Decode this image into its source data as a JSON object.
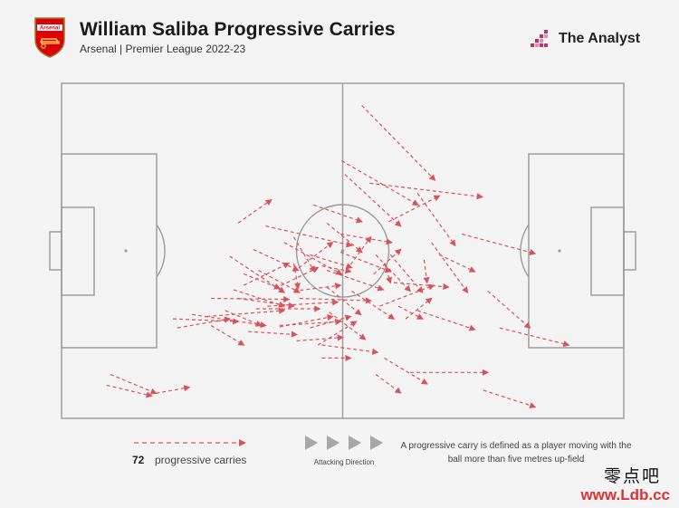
{
  "header": {
    "title": "William Saliba Progressive Carries",
    "subtitle": "Arsenal | Premier League 2022-23",
    "crest_label": "Arsenal",
    "brand_name": "The Analyst"
  },
  "legend": {
    "count": "72",
    "label": "progressive carries",
    "direction_label": "Attacking Direction",
    "definition": "A progressive carry is defined as a player moving with the ball more than five metres up-field"
  },
  "watermark": {
    "chinese": "零点吧",
    "url": "www.Ldb.cc"
  },
  "colors": {
    "arrow": "#d9535a",
    "pitch_line": "#9a9a9a",
    "pitch_bg": "#f4f4f4",
    "accent": "#c0306b",
    "watermark_red": "#e0312f"
  },
  "chart_data": {
    "type": "scatter",
    "variant": "arrows on football pitch",
    "units": "pitch coordinates 0-100 (x = length in attacking direction, y = width from top)",
    "xlim": [
      0,
      100
    ],
    "ylim": [
      0,
      100
    ],
    "carries": [
      [
        53.4,
        6.6,
        66.4,
        28.9
      ],
      [
        49.8,
        23.1,
        63.4,
        36.3
      ],
      [
        50.4,
        27.2,
        60.3,
        42.6
      ],
      [
        54.8,
        29.8,
        74.8,
        33.9
      ],
      [
        44.8,
        36.3,
        53.4,
        41.3
      ],
      [
        58.2,
        41.3,
        67.2,
        33.6
      ],
      [
        47.2,
        41.7,
        53.4,
        50.4
      ],
      [
        36.3,
        42.6,
        51.6,
        48.4
      ],
      [
        41.3,
        45.9,
        45.0,
        56.2
      ],
      [
        44.2,
        51.2,
        51.6,
        55.0
      ],
      [
        49.6,
        50.4,
        58.5,
        56.2
      ],
      [
        55.9,
        51.2,
        62.0,
        62.0
      ],
      [
        58.5,
        51.2,
        64.2,
        62.4
      ],
      [
        64.5,
        52.7,
        65.0,
        59.5
      ],
      [
        41.3,
        53.7,
        42.1,
        61.2
      ],
      [
        46.3,
        54.5,
        51.4,
        56.2
      ],
      [
        51.4,
        54.1,
        55.0,
        45.9
      ],
      [
        57.4,
        53.7,
        58.5,
        59.5
      ],
      [
        55.5,
        57.0,
        60.3,
        49.6
      ],
      [
        39.6,
        47.5,
        49.8,
        57.0
      ],
      [
        34.1,
        49.6,
        42.1,
        55.8
      ],
      [
        47.2,
        55.8,
        57.2,
        61.6
      ],
      [
        29.9,
        51.6,
        39.6,
        62.4
      ],
      [
        32.4,
        60.3,
        40.4,
        53.7
      ],
      [
        35.0,
        55.8,
        42.3,
        62.4
      ],
      [
        38.0,
        61.2,
        45.6,
        55.0
      ],
      [
        41.3,
        62.0,
        49.6,
        60.3
      ],
      [
        47.2,
        60.8,
        53.2,
        69.0
      ],
      [
        42.3,
        64.2,
        55.0,
        64.9
      ],
      [
        36.6,
        66.5,
        49.1,
        65.3
      ],
      [
        30.6,
        61.6,
        39.6,
        66.5
      ],
      [
        26.6,
        64.2,
        40.4,
        64.5
      ],
      [
        31.4,
        64.2,
        41.3,
        66.5
      ],
      [
        34.6,
        67.3,
        45.9,
        67.3
      ],
      [
        25.8,
        69.6,
        39.6,
        67.8
      ],
      [
        23.2,
        69.0,
        36.3,
        72.3
      ],
      [
        19.8,
        70.3,
        31.4,
        71.1
      ],
      [
        20.6,
        73.0,
        29.9,
        70.3
      ],
      [
        26.6,
        72.3,
        32.4,
        78.1
      ],
      [
        33.2,
        74.1,
        41.8,
        75.0
      ],
      [
        38.8,
        72.3,
        49.6,
        71.1
      ],
      [
        44.2,
        73.0,
        51.4,
        69.6
      ],
      [
        41.8,
        76.9,
        50.0,
        75.8
      ],
      [
        45.6,
        78.1,
        52.4,
        71.1
      ],
      [
        46.3,
        82.0,
        51.4,
        82.0
      ],
      [
        57.4,
        82.0,
        65.0,
        89.7
      ],
      [
        55.9,
        86.9,
        60.3,
        92.4
      ],
      [
        63.3,
        67.8,
        73.5,
        73.5
      ],
      [
        75.8,
        62.0,
        83.3,
        73.0
      ],
      [
        77.9,
        73.0,
        90.2,
        78.1
      ],
      [
        75.0,
        91.6,
        84.2,
        96.6
      ],
      [
        46.3,
        78.1,
        56.2,
        80.3
      ],
      [
        62.0,
        86.3,
        75.8,
        86.3
      ],
      [
        8.7,
        86.9,
        16.8,
        92.5
      ],
      [
        16.8,
        92.5,
        22.7,
        90.7
      ],
      [
        8.0,
        90.1,
        16.0,
        93.3
      ],
      [
        31.4,
        41.7,
        37.3,
        34.8
      ],
      [
        61.2,
        70.3,
        65.8,
        64.2
      ],
      [
        56.6,
        66.5,
        66.2,
        60.3
      ],
      [
        59.1,
        59.5,
        68.8,
        60.8
      ],
      [
        41.3,
        56.2,
        48.2,
        47.5
      ],
      [
        49.6,
        45.0,
        58.7,
        47.5
      ],
      [
        67.2,
        51.2,
        73.5,
        56.2
      ],
      [
        59.9,
        66.5,
        64.2,
        70.3
      ],
      [
        38.8,
        72.7,
        48.2,
        69.6
      ],
      [
        29.1,
        67.8,
        35.5,
        72.3
      ],
      [
        51.6,
        62.0,
        59.1,
        70.3
      ],
      [
        47.6,
        68.3,
        54.0,
        76.4
      ],
      [
        65.8,
        47.5,
        72.2,
        62.4
      ],
      [
        71.2,
        45.0,
        84.2,
        50.8
      ],
      [
        63.3,
        32.8,
        70.0,
        48.4
      ],
      [
        32.4,
        56.9,
        38.8,
        61.2
      ]
    ]
  }
}
